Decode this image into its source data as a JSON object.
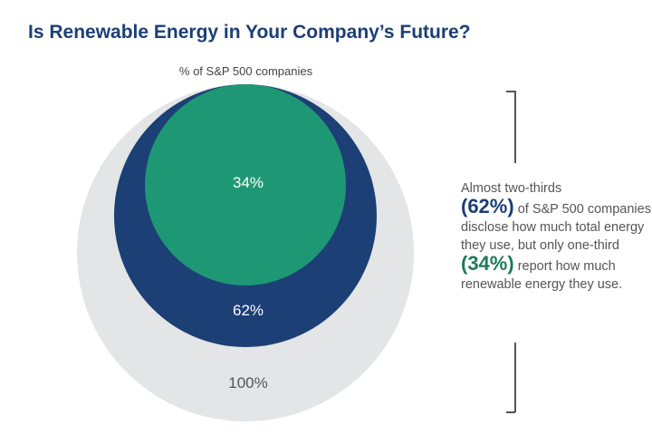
{
  "chart_data": {
    "type": "nested-circles",
    "title": "Is Renewable Energy in Your Company’s Future?",
    "subtitle": "% of S&P 500 companies",
    "circles": [
      {
        "name": "All S&P 500 companies",
        "value": 100,
        "label": "100%",
        "color": "#e3e5e6",
        "label_color": "#555555"
      },
      {
        "name": "Disclose total energy",
        "value": 62,
        "label": "62%",
        "color": "#1c3f75",
        "label_color": "#ffffff"
      },
      {
        "name": "Report renewable energy",
        "value": 34,
        "label": "34%",
        "color": "#1e9874",
        "label_color": "#ffffff"
      }
    ]
  },
  "note": {
    "part1": "Almost two-thirds",
    "pct1": "(62%)",
    "part2": " of S&P 500 companies disclose how much total energy they use, but only one-third",
    "pct2": "(34%)",
    "part3": " report how much renewable energy they use.",
    "pct1_color": "#1c3f75",
    "pct2_color": "#1e7a5c"
  }
}
